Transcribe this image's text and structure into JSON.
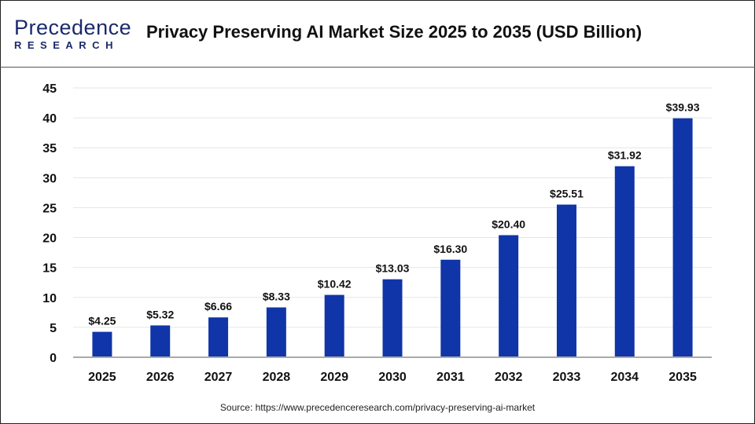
{
  "header": {
    "logo_text": "Precedence",
    "logo_sub": "RESEARCH",
    "title": "Privacy Preserving AI Market Size 2025 to 2035 (USD Billion)"
  },
  "source": "Source: https://www.precedenceresearch.com/privacy-preserving-ai-market",
  "chart_data": {
    "type": "bar",
    "title": "Privacy Preserving AI Market Size 2025 to 2035 (USD Billion)",
    "categories": [
      "2025",
      "2026",
      "2027",
      "2028",
      "2029",
      "2030",
      "2031",
      "2032",
      "2033",
      "2034",
      "2035"
    ],
    "values": [
      4.25,
      5.32,
      6.66,
      8.33,
      10.42,
      13.03,
      16.3,
      20.4,
      25.51,
      31.92,
      39.93
    ],
    "data_labels": [
      "$4.25",
      "$5.32",
      "$6.66",
      "$8.33",
      "$10.42",
      "$13.03",
      "$16.30",
      "$20.40",
      "$25.51",
      "$31.92",
      "$39.93"
    ],
    "yticks": [
      "0",
      "5",
      "10",
      "15",
      "20",
      "25",
      "30",
      "35",
      "40",
      "45"
    ],
    "ylim": [
      0,
      45
    ],
    "grid": true,
    "bar_color": "#0f35a8"
  }
}
